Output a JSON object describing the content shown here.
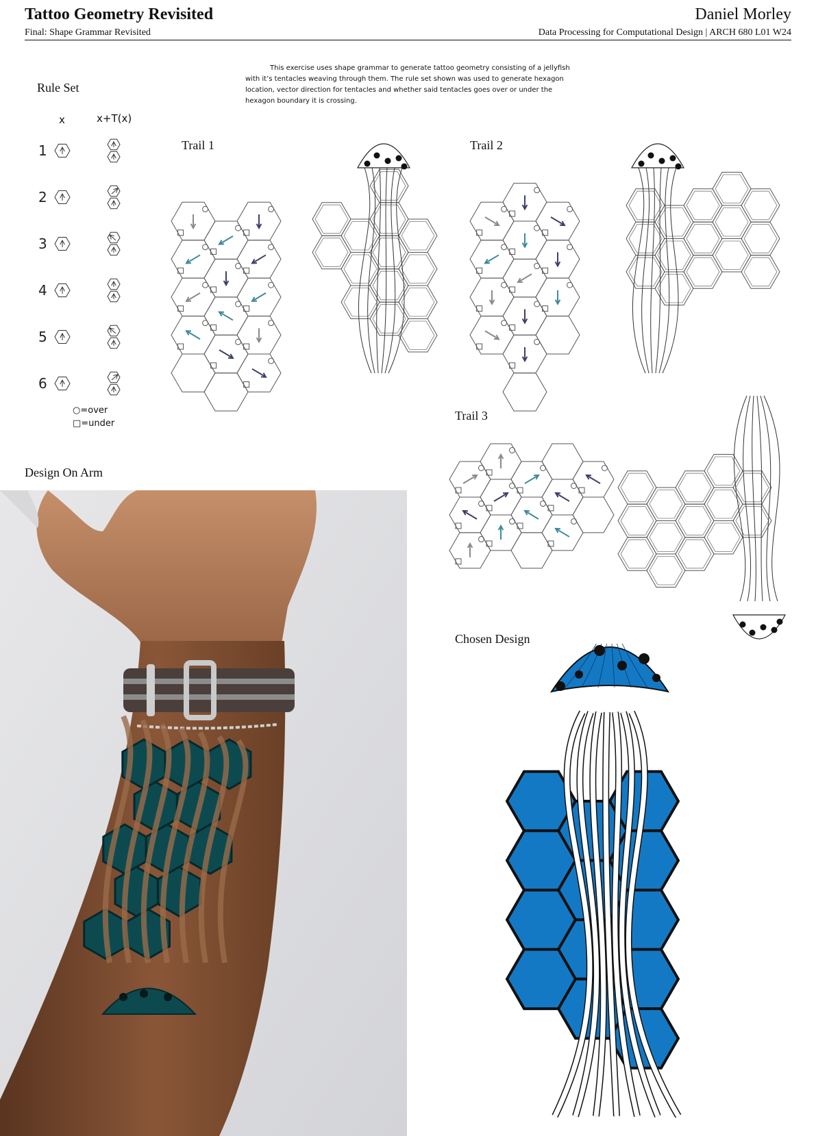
{
  "header": {
    "title": "Tattoo Geometry Revisited",
    "subtitle": "Final: Shape Grammar Revisited",
    "author": "Daniel Morley",
    "course": "Data Processing for Computational Design | ARCH 680 L01 W24"
  },
  "intro": "This exercise uses shape grammar to generate tattoo geometry consisting of a jellyfish with it’s tentacles weaving through them. The rule set shown was used to generate hexagon location, vector direction for tentacles and whether said tentacles goes over or under the hexagon boundary it is crossing.",
  "rule_set": {
    "heading": "Rule Set",
    "col_x": "x",
    "col_tx": "x+T(x)",
    "rules": [
      "1",
      "2",
      "3",
      "4",
      "5",
      "6"
    ],
    "legend_over": "○=over",
    "legend_under": "□=under"
  },
  "trails": [
    {
      "label": "Trail 1"
    },
    {
      "label": "Trail 2"
    },
    {
      "label": "Trail 3"
    }
  ],
  "design_on_arm": "Design On Arm",
  "chosen_design": "Chosen Design",
  "colors": {
    "hex_blue": "#1479c4",
    "arrow_navy": "#3d3f6b",
    "arrow_teal": "#3d8a9a",
    "arrow_gray": "#8a8a8a",
    "tattoo_teal": "#0d4a4f",
    "skin": "#7a4a2c"
  },
  "icons": [
    "hexagon-arrow-icon",
    "circle-over-icon",
    "square-under-icon",
    "jellyfish-illustration"
  ]
}
